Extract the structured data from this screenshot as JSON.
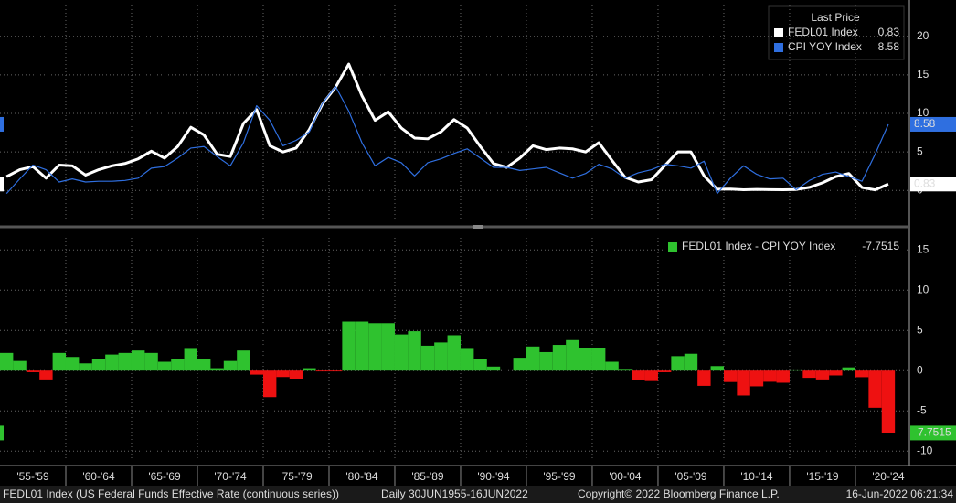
{
  "chart_data": [
    {
      "type": "line",
      "legend_title": "Last Price",
      "x": [
        1955,
        1956,
        1957,
        1958,
        1959,
        1960,
        1961,
        1962,
        1963,
        1964,
        1965,
        1966,
        1967,
        1968,
        1969,
        1970,
        1971,
        1972,
        1973,
        1974,
        1975,
        1976,
        1977,
        1978,
        1979,
        1980,
        1981,
        1982,
        1983,
        1984,
        1985,
        1986,
        1987,
        1988,
        1989,
        1990,
        1991,
        1992,
        1993,
        1994,
        1995,
        1996,
        1997,
        1998,
        1999,
        2000,
        2001,
        2002,
        2003,
        2004,
        2005,
        2006,
        2007,
        2008,
        2009,
        2010,
        2011,
        2012,
        2013,
        2014,
        2015,
        2016,
        2017,
        2018,
        2019,
        2020,
        2021,
        2022
      ],
      "series": [
        {
          "name": "FEDL01 Index",
          "color": "#ffffff",
          "values": [
            1.8,
            2.7,
            3.1,
            1.6,
            3.3,
            3.2,
            2.0,
            2.7,
            3.2,
            3.5,
            4.1,
            5.1,
            4.2,
            5.7,
            8.2,
            7.2,
            4.7,
            4.4,
            8.7,
            10.5,
            5.8,
            5.0,
            5.5,
            7.9,
            11.2,
            13.4,
            16.4,
            12.3,
            9.1,
            10.2,
            8.1,
            6.8,
            6.7,
            7.6,
            9.2,
            8.1,
            5.7,
            3.5,
            3.0,
            4.2,
            5.8,
            5.3,
            5.5,
            5.4,
            5.0,
            6.2,
            3.9,
            1.7,
            1.1,
            1.4,
            3.2,
            5.0,
            5.0,
            1.9,
            0.16,
            0.18,
            0.1,
            0.14,
            0.11,
            0.09,
            0.13,
            0.4,
            1.0,
            1.8,
            2.2,
            0.38,
            0.08,
            0.83
          ]
        },
        {
          "name": "CPI YOY Index",
          "color": "#2f6fe0",
          "values": [
            -0.4,
            1.5,
            3.3,
            2.7,
            1.1,
            1.5,
            1.1,
            1.2,
            1.2,
            1.3,
            1.6,
            2.9,
            3.1,
            4.2,
            5.5,
            5.7,
            4.4,
            3.2,
            6.2,
            11.0,
            9.1,
            5.8,
            6.5,
            7.6,
            11.3,
            13.5,
            10.3,
            6.2,
            3.2,
            4.3,
            3.6,
            1.9,
            3.6,
            4.1,
            4.8,
            5.4,
            4.2,
            3.0,
            3.0,
            2.6,
            2.8,
            3.0,
            2.3,
            1.6,
            2.2,
            3.4,
            2.8,
            1.6,
            2.3,
            2.7,
            3.4,
            3.2,
            2.9,
            3.8,
            -0.4,
            1.6,
            3.2,
            2.1,
            1.5,
            1.6,
            0.1,
            1.3,
            2.1,
            2.4,
            1.8,
            1.2,
            4.7,
            8.58
          ]
        }
      ],
      "xlim": [
        1954.5,
        2023.6
      ],
      "ylim": [
        -4,
        24
      ],
      "yticks": [
        0,
        5,
        10,
        15,
        20
      ],
      "grid": true
    },
    {
      "type": "bar",
      "series_name": "FEDL01 Index - CPI YOY Index",
      "positive_color": "#2fc22f",
      "negative_color": "#ee1111",
      "x": [
        1955,
        1956,
        1957,
        1958,
        1959,
        1960,
        1961,
        1962,
        1963,
        1964,
        1965,
        1966,
        1967,
        1968,
        1969,
        1970,
        1971,
        1972,
        1973,
        1974,
        1975,
        1976,
        1977,
        1978,
        1979,
        1980,
        1981,
        1982,
        1983,
        1984,
        1985,
        1986,
        1987,
        1988,
        1989,
        1990,
        1991,
        1992,
        1993,
        1994,
        1995,
        1996,
        1997,
        1998,
        1999,
        2000,
        2001,
        2002,
        2003,
        2004,
        2005,
        2006,
        2007,
        2008,
        2009,
        2010,
        2011,
        2012,
        2013,
        2014,
        2015,
        2016,
        2017,
        2018,
        2019,
        2020,
        2021,
        2022
      ],
      "values": [
        2.2,
        1.2,
        -0.2,
        -1.1,
        2.2,
        1.7,
        0.9,
        1.5,
        2.0,
        2.2,
        2.5,
        2.2,
        1.1,
        1.5,
        2.7,
        1.5,
        0.3,
        1.2,
        2.5,
        -0.5,
        -3.3,
        -0.8,
        -1.0,
        0.3,
        -0.1,
        -0.1,
        6.1,
        6.1,
        5.9,
        5.9,
        4.5,
        4.9,
        3.1,
        3.5,
        4.4,
        2.7,
        1.5,
        0.5,
        0.0,
        1.6,
        3.0,
        2.3,
        3.2,
        3.8,
        2.8,
        2.8,
        1.1,
        0.1,
        -1.2,
        -1.3,
        -0.2,
        1.8,
        2.1,
        -1.9,
        0.56,
        -1.42,
        -3.1,
        -1.96,
        -1.39,
        -1.51,
        0.03,
        -0.9,
        -1.1,
        -0.6,
        0.4,
        -0.82,
        -4.62,
        -7.7515
      ],
      "xlim": [
        1954.5,
        2023.6
      ],
      "ylim": [
        -11,
        16.5
      ],
      "yticks": [
        -10,
        -5,
        0,
        5,
        10,
        15
      ],
      "grid": true,
      "xticks": [
        {
          "value": 1957,
          "label": "'55-'59"
        },
        {
          "value": 1962,
          "label": "'60-'64"
        },
        {
          "value": 1967,
          "label": "'65-'69"
        },
        {
          "value": 1972,
          "label": "'70-'74"
        },
        {
          "value": 1977,
          "label": "'75-'79"
        },
        {
          "value": 1982,
          "label": "'80-'84"
        },
        {
          "value": 1987,
          "label": "'85-'89"
        },
        {
          "value": 1992,
          "label": "'90-'94"
        },
        {
          "value": 1997,
          "label": "'95-'99"
        },
        {
          "value": 2002,
          "label": "'00-'04"
        },
        {
          "value": 2007,
          "label": "'05-'09"
        },
        {
          "value": 2012,
          "label": "'10-'14"
        },
        {
          "value": 2017,
          "label": "'15-'19"
        },
        {
          "value": 2022,
          "label": "'20-'24"
        }
      ]
    }
  ],
  "footer": {
    "description": "FEDL01 Index (US Federal Funds Effective Rate (continuous series))",
    "range": "Daily 30JUN1955-16JUN2022",
    "copyright": "Copyright© 2022 Bloomberg Finance L.P.",
    "timestamp": "16-Jun-2022 06:21:34"
  }
}
